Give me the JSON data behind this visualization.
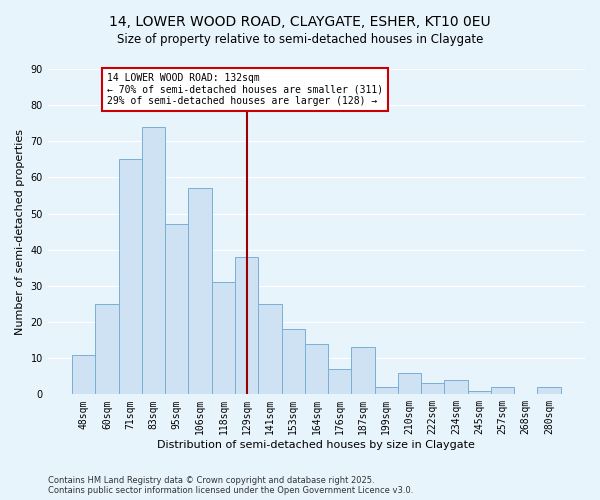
{
  "title": "14, LOWER WOOD ROAD, CLAYGATE, ESHER, KT10 0EU",
  "subtitle": "Size of property relative to semi-detached houses in Claygate",
  "xlabel": "Distribution of semi-detached houses by size in Claygate",
  "ylabel": "Number of semi-detached properties",
  "bar_labels": [
    "48sqm",
    "60sqm",
    "71sqm",
    "83sqm",
    "95sqm",
    "106sqm",
    "118sqm",
    "129sqm",
    "141sqm",
    "153sqm",
    "164sqm",
    "176sqm",
    "187sqm",
    "199sqm",
    "210sqm",
    "222sqm",
    "234sqm",
    "245sqm",
    "257sqm",
    "268sqm",
    "280sqm"
  ],
  "bar_values": [
    11,
    25,
    65,
    74,
    47,
    57,
    31,
    38,
    25,
    18,
    14,
    7,
    13,
    2,
    6,
    3,
    4,
    1,
    2,
    0,
    2
  ],
  "bar_color": "#cfe2f3",
  "bar_edge_color": "#7bafd4",
  "vline_x_index": 7,
  "vline_color": "#990000",
  "annotation_title": "14 LOWER WOOD ROAD: 132sqm",
  "annotation_line1": "← 70% of semi-detached houses are smaller (311)",
  "annotation_line2": "29% of semi-detached houses are larger (128) →",
  "annotation_box_color": "#ffffff",
  "annotation_box_edge": "#cc0000",
  "ylim": [
    0,
    90
  ],
  "yticks": [
    0,
    10,
    20,
    30,
    40,
    50,
    60,
    70,
    80,
    90
  ],
  "footer_line1": "Contains HM Land Registry data © Crown copyright and database right 2025.",
  "footer_line2": "Contains public sector information licensed under the Open Government Licence v3.0.",
  "bg_color": "#e8f4fc",
  "plot_bg_color": "#e8f4fc",
  "grid_color": "#ffffff",
  "title_fontsize": 10,
  "subtitle_fontsize": 8.5,
  "axis_label_fontsize": 8,
  "tick_fontsize": 7,
  "footer_fontsize": 6
}
